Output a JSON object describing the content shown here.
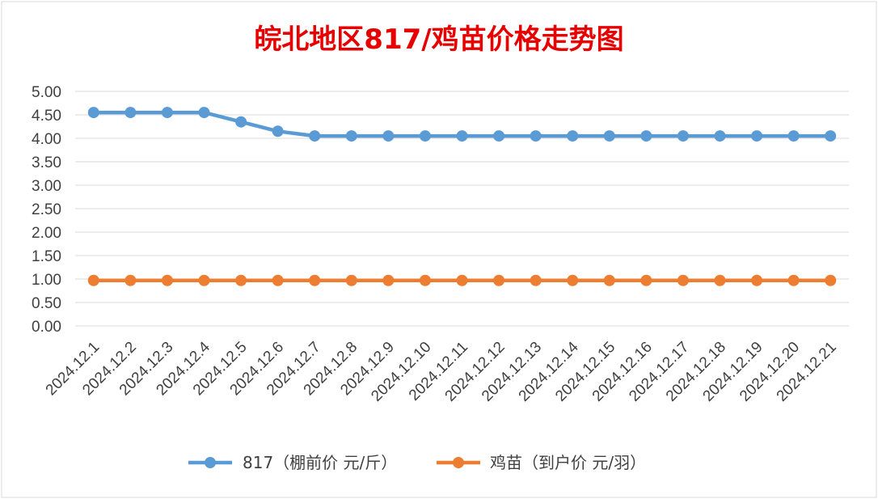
{
  "chart_data": {
    "type": "line",
    "title": "皖北地区817/鸡苗价格走势图",
    "title_color": "#e60000",
    "categories": [
      "2024.12.1",
      "2024.12.2",
      "2024.12.3",
      "2024.12.4",
      "2024.12.5",
      "2024.12.6",
      "2024.12.7",
      "2024.12.8",
      "2024.12.9",
      "2024.12.10",
      "2024.12.11",
      "2024.12.12",
      "2024.12.13",
      "2024.12.14",
      "2024.12.15",
      "2024.12.16",
      "2024.12.17",
      "2024.12.18",
      "2024.12.19",
      "2024.12.20",
      "2024.12.21"
    ],
    "series": [
      {
        "name": "817（棚前价 元/斤）",
        "color": "#5b9bd5",
        "values": [
          4.55,
          4.55,
          4.55,
          4.55,
          4.35,
          4.15,
          4.05,
          4.05,
          4.05,
          4.05,
          4.05,
          4.05,
          4.05,
          4.05,
          4.05,
          4.05,
          4.05,
          4.05,
          4.05,
          4.05,
          4.05
        ]
      },
      {
        "name": "鸡苗（到户价 元/羽）",
        "color": "#ed7d31",
        "values": [
          0.97,
          0.97,
          0.97,
          0.97,
          0.97,
          0.97,
          0.97,
          0.97,
          0.97,
          0.97,
          0.97,
          0.97,
          0.97,
          0.97,
          0.97,
          0.97,
          0.97,
          0.97,
          0.97,
          0.97,
          0.97
        ]
      }
    ],
    "yticks": [
      "0.00",
      "0.50",
      "1.00",
      "1.50",
      "2.00",
      "2.50",
      "3.00",
      "3.50",
      "4.00",
      "4.50",
      "5.00"
    ],
    "ylim": [
      0,
      5
    ],
    "grid": true,
    "legend_position": "bottom"
  }
}
